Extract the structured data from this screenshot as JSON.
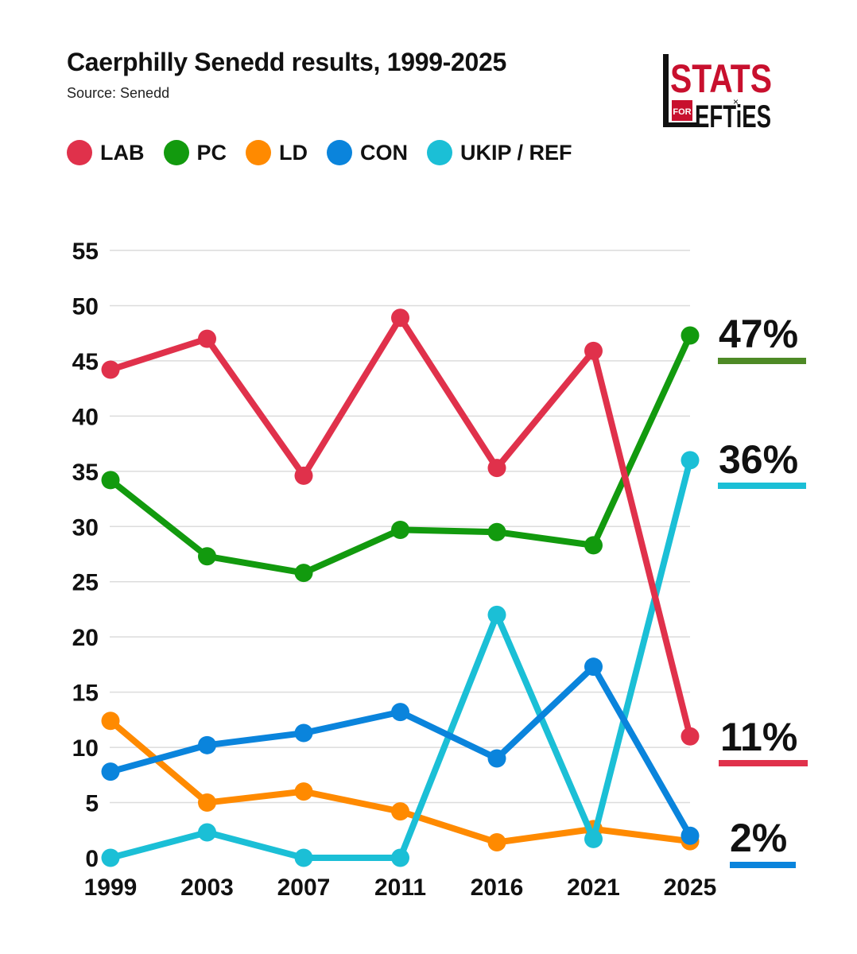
{
  "header": {
    "title": "Caerphilly Senedd results, 1999-2025",
    "source": "Source: Senedd"
  },
  "logo": {
    "line1": "STATS",
    "small": "FOR",
    "line2": "EFTiES",
    "mark": "×",
    "color_red": "#c8102e",
    "color_dark": "#111111"
  },
  "chart_data": {
    "type": "line",
    "title": "Caerphilly Senedd results, 1999-2025",
    "xlabel": "",
    "ylabel": "",
    "x": [
      "1999",
      "2003",
      "2007",
      "2011",
      "2016",
      "2021",
      "2025"
    ],
    "yticks": [
      "0",
      "5",
      "10",
      "15",
      "20",
      "25",
      "30",
      "35",
      "40",
      "45",
      "50",
      "55"
    ],
    "ylim": [
      0,
      55
    ],
    "grid": true,
    "legend_position": "top-left",
    "series": [
      {
        "name": "LAB",
        "color": "#e0314b",
        "values": [
          44.2,
          47.0,
          34.6,
          48.9,
          35.3,
          45.9,
          11.0
        ],
        "end_label": "11%",
        "underline_color": "#e0314b"
      },
      {
        "name": "PC",
        "color": "#129a0e",
        "values": [
          34.2,
          27.3,
          25.8,
          29.7,
          29.5,
          28.3,
          47.3
        ],
        "end_label": "47%",
        "underline_color": "#4e8a26"
      },
      {
        "name": "LD",
        "color": "#ff8a00",
        "values": [
          12.4,
          5.0,
          6.0,
          4.2,
          1.4,
          2.6,
          1.5
        ],
        "end_label": "",
        "underline_color": ""
      },
      {
        "name": "CON",
        "color": "#0a84dc",
        "values": [
          7.8,
          10.2,
          11.3,
          13.2,
          9.0,
          17.3,
          2.0
        ],
        "end_label": "2%",
        "underline_color": "#0a84dc"
      },
      {
        "name": "UKIP / REF",
        "color": "#1bbfd6",
        "values": [
          0,
          2.3,
          0,
          0,
          22.0,
          1.7,
          36.0
        ],
        "end_label": "36%",
        "underline_color": "#1bbfd6"
      }
    ]
  }
}
